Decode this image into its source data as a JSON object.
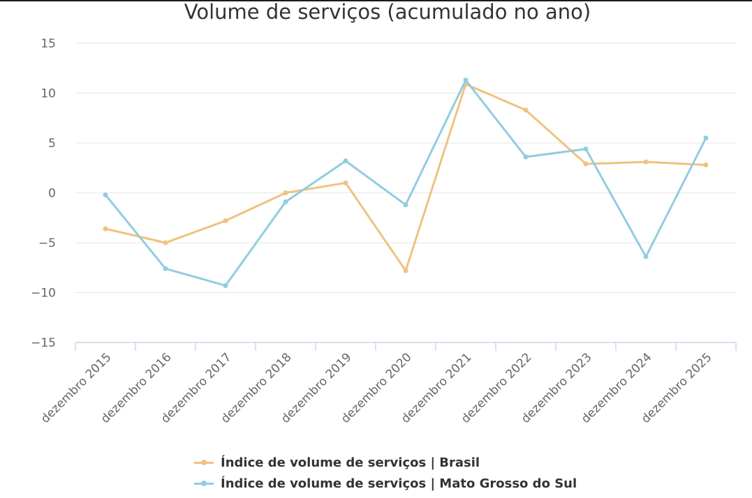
{
  "chart_data": {
    "type": "line",
    "title": "Volume de serviços (acumulado no ano)",
    "xlabel": "",
    "ylabel": "",
    "categories": [
      "dezembro 2015",
      "dezembro 2016",
      "dezembro 2017",
      "dezembro 2018",
      "dezembro 2019",
      "dezembro 2020",
      "dezembro 2021",
      "dezembro 2022",
      "dezembro 2023",
      "dezembro 2024",
      "dezembro 2025"
    ],
    "ylim": [
      -15,
      15
    ],
    "yticks": [
      "15",
      "10",
      "5",
      "0",
      "−5",
      "−10",
      "−15"
    ],
    "grid": true,
    "legend_position": "bottom",
    "series": [
      {
        "name": "Índice de volume de serviços | Brasil",
        "color": "#f0c27f",
        "values": [
          -3.6,
          -5.0,
          -2.8,
          0.0,
          1.0,
          -7.8,
          10.9,
          8.3,
          2.9,
          3.1,
          2.8
        ]
      },
      {
        "name": "Índice de volume de serviços | Mato Grosso do Sul",
        "color": "#92cce1",
        "values": [
          -0.2,
          -7.6,
          -9.3,
          -0.9,
          3.2,
          -1.2,
          11.3,
          3.6,
          4.4,
          -6.4,
          5.5
        ]
      }
    ]
  }
}
